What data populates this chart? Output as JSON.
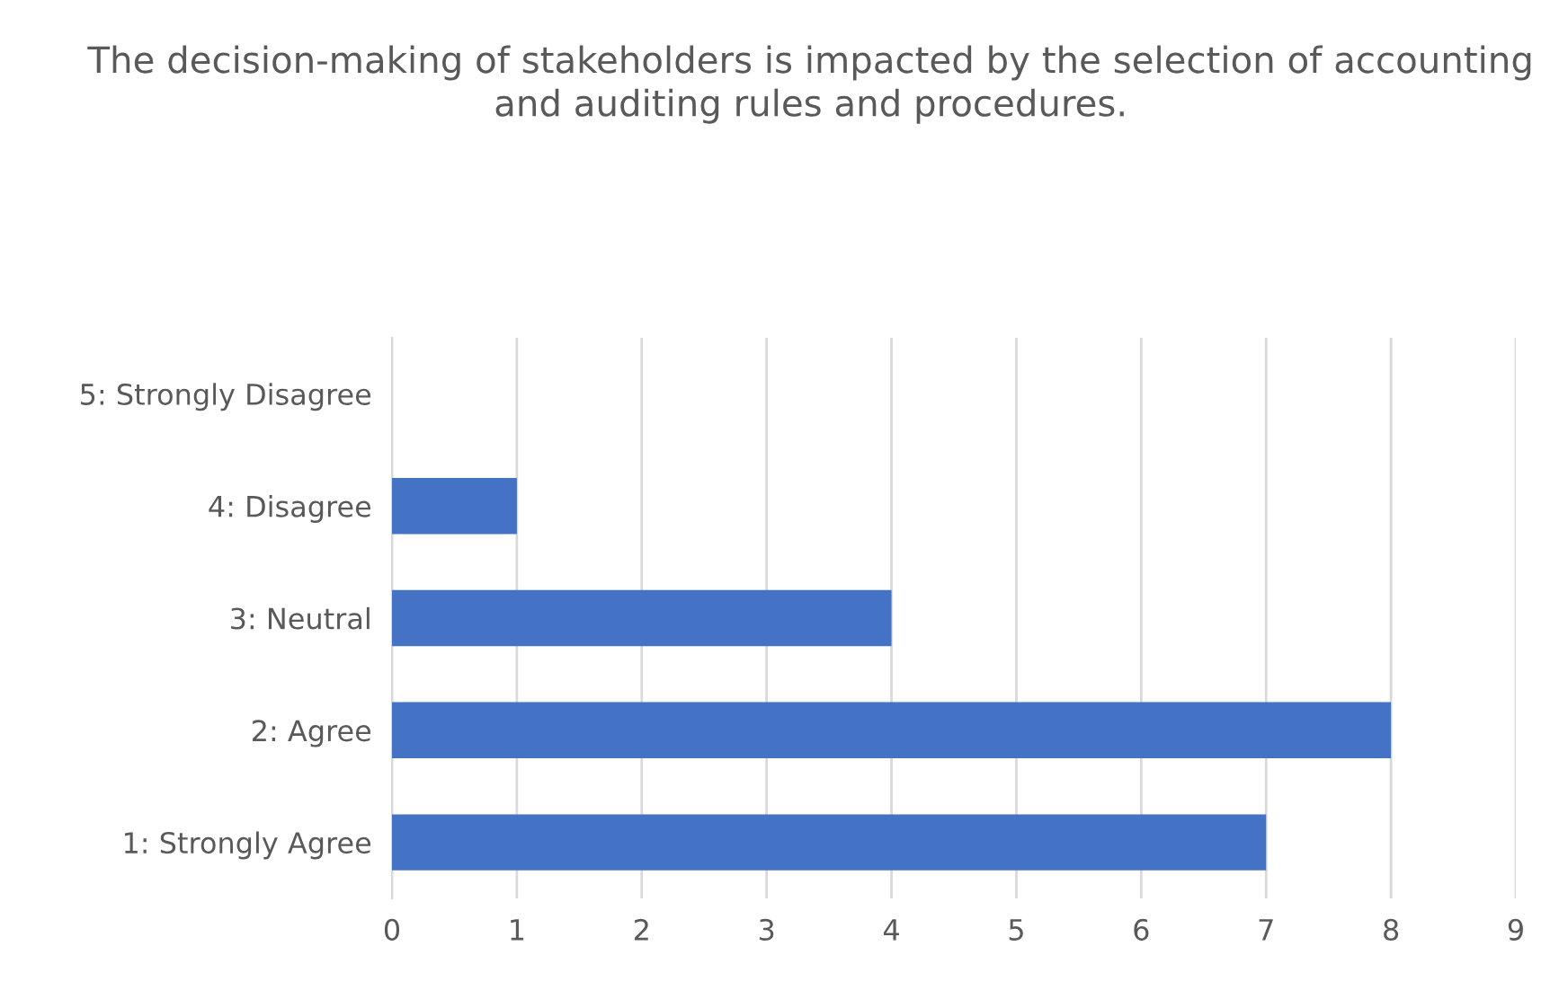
{
  "chart_data": {
    "type": "bar",
    "orientation": "horizontal",
    "title": "The decision-making of stakeholders is impacted by the selection of accounting and auditing rules and procedures.",
    "categories": [
      "5: Strongly Disagree",
      "4: Disagree",
      "3: Neutral",
      "2: Agree",
      "1: Strongly Agree"
    ],
    "values": [
      0,
      1,
      4,
      8,
      7
    ],
    "color": "#4472c4",
    "xlim": [
      0,
      9
    ],
    "xticks": [
      0,
      1,
      2,
      3,
      4,
      5,
      6,
      7,
      8,
      9
    ],
    "grid": "x",
    "legend": false
  }
}
